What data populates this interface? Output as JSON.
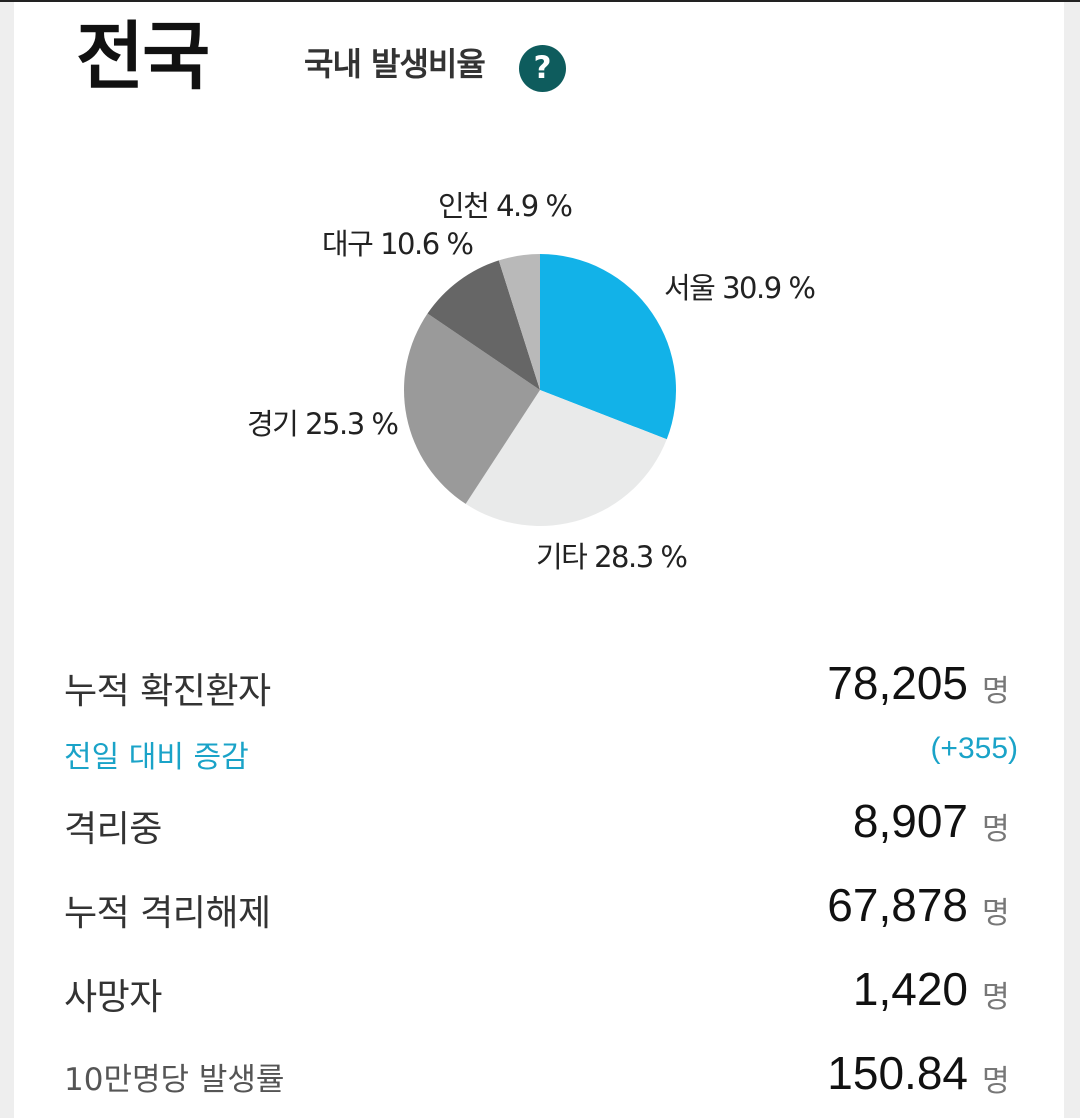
{
  "header": {
    "region": "전국",
    "ratio_label": "국내 발생비율",
    "help_symbol": "?"
  },
  "chart_data": {
    "type": "pie",
    "slices": [
      {
        "label": "서울 30.9 %",
        "value": 30.9,
        "color": "#12b2e8"
      },
      {
        "label": "기타 28.3 %",
        "value": 28.3,
        "color": "#e9eaea"
      },
      {
        "label": "경기 25.3 %",
        "value": 25.3,
        "color": "#9a9a9a"
      },
      {
        "label": "대구 10.6 %",
        "value": 10.6,
        "color": "#666666"
      },
      {
        "label": "인천 4.9 %",
        "value": 4.9,
        "color": "#b9b9b9"
      }
    ]
  },
  "stats": {
    "cumulative_confirmed": {
      "label": "누적 확진환자",
      "value": "78,205",
      "unit": "명"
    },
    "daily_change": {
      "label": "전일 대비 증감",
      "value": "(+355)"
    },
    "isolated": {
      "label": "격리중",
      "value": "8,907",
      "unit": "명"
    },
    "released": {
      "label": "누적 격리해제",
      "value": "67,878",
      "unit": "명"
    },
    "deaths": {
      "label": "사망자",
      "value": "1,420",
      "unit": "명"
    },
    "rate_per_100k": {
      "label": "10만명당 발생률",
      "value": "150.84",
      "unit": "명"
    }
  },
  "colors": {
    "accent": "#1aa3c8",
    "help_icon": "#0e5c5d"
  }
}
